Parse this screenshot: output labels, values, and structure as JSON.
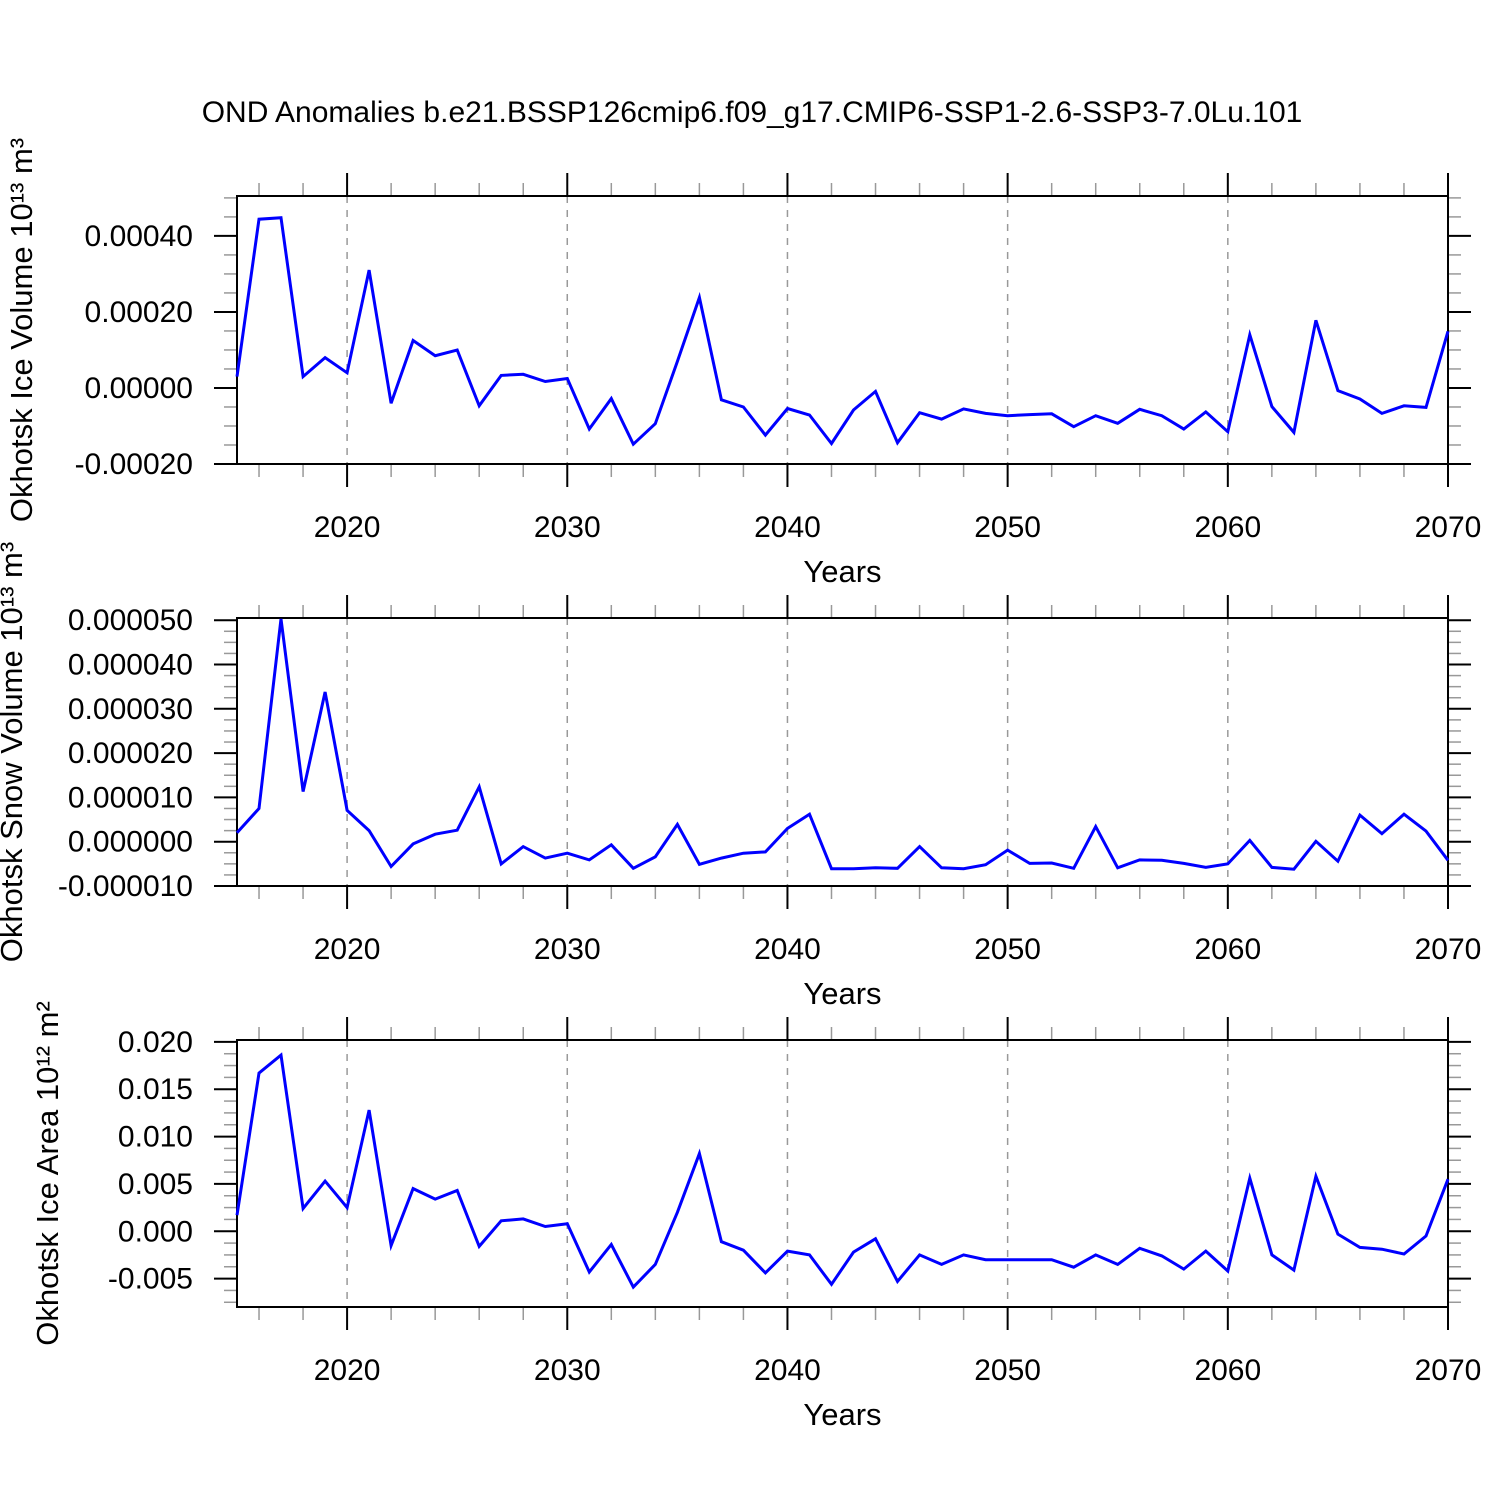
{
  "title": "OND Anomalies b.e21.BSSP126cmip6.f09_g17.CMIP6-SSP1-2.6-SSP3-7.0Lu.101",
  "colors": {
    "line": "#0000ff",
    "axis": "#000000",
    "minor_tick": "#999999",
    "grid": "#999999",
    "background": "#ffffff"
  },
  "chart_data": [
    {
      "type": "line",
      "name": "okhotsk-ice-volume",
      "ylabel": "Okhotsk Ice Volume 10¹³ m³",
      "xlabel": "Years",
      "line_color": "#0000ff",
      "xlim": [
        2015,
        2070
      ],
      "ylim": [
        -0.0002,
        0.000505
      ],
      "x_major_ticks": [
        2020,
        2030,
        2040,
        2050,
        2060,
        2070
      ],
      "x_tick_labels": [
        "2020",
        "2030",
        "2040",
        "2050",
        "2060",
        "2070"
      ],
      "x_minor_step": 2,
      "y_major_ticks": [
        -0.0002,
        0.0,
        0.0002,
        0.0004
      ],
      "y_tick_labels": [
        "-0.00020",
        "0.00000",
        "0.00020",
        "0.00040"
      ],
      "y_minor_step": 5e-05,
      "grid_x": [
        2020,
        2030,
        2040,
        2050,
        2060
      ],
      "x": [
        2015,
        2016,
        2017,
        2018,
        2019,
        2020,
        2021,
        2022,
        2023,
        2024,
        2025,
        2026,
        2027,
        2028,
        2029,
        2030,
        2031,
        2032,
        2033,
        2034,
        2035,
        2036,
        2037,
        2038,
        2039,
        2040,
        2041,
        2042,
        2043,
        2044,
        2045,
        2046,
        2047,
        2048,
        2049,
        2050,
        2051,
        2052,
        2053,
        2054,
        2055,
        2056,
        2057,
        2058,
        2059,
        2060,
        2061,
        2062,
        2063,
        2064,
        2065,
        2066,
        2067,
        2068,
        2069,
        2070
      ],
      "values": [
        3e-05,
        0.000444,
        0.000448,
        3e-05,
        8e-05,
        4e-05,
        0.00031,
        -4e-05,
        0.000125,
        8.5e-05,
        0.0001,
        -4.7e-05,
        3.3e-05,
        3.6e-05,
        1.7e-05,
        2.5e-05,
        -0.000108,
        -2.8e-05,
        -0.000148,
        -9.4e-05,
        7e-05,
        0.000238,
        -3.1e-05,
        -5e-05,
        -0.000124,
        -5.4e-05,
        -7.1e-05,
        -0.000146,
        -5.8e-05,
        -9e-06,
        -0.000144,
        -6.5e-05,
        -8.2e-05,
        -5.5e-05,
        -6.7e-05,
        -7.3e-05,
        -7e-05,
        -6.8e-05,
        -0.000102,
        -7.3e-05,
        -9.3e-05,
        -5.6e-05,
        -7.3e-05,
        -0.000108,
        -6.3e-05,
        -0.000115,
        0.00014,
        -4.9e-05,
        -0.000117,
        0.000178,
        -7e-06,
        -2.9e-05,
        -6.7e-05,
        -4.7e-05,
        -5.1e-05,
        0.000149
      ]
    },
    {
      "type": "line",
      "name": "okhotsk-snow-volume",
      "ylabel": "Okhotsk Snow Volume 10¹³ m³",
      "xlabel": "Years",
      "line_color": "#0000ff",
      "xlim": [
        2015,
        2070
      ],
      "ylim": [
        -1e-05,
        5.05e-05
      ],
      "x_major_ticks": [
        2020,
        2030,
        2040,
        2050,
        2060,
        2070
      ],
      "x_tick_labels": [
        "2020",
        "2030",
        "2040",
        "2050",
        "2060",
        "2070"
      ],
      "x_minor_step": 2,
      "y_major_ticks": [
        -1e-05,
        0.0,
        1e-05,
        2e-05,
        3e-05,
        4e-05,
        5e-05
      ],
      "y_tick_labels": [
        "-0.000010",
        "0.000000",
        "0.000010",
        "0.000020",
        "0.000030",
        "0.000040",
        "0.000050"
      ],
      "y_minor_step": 2.5e-06,
      "grid_x": [
        2020,
        2030,
        2040,
        2050,
        2060
      ],
      "x": [
        2015,
        2016,
        2017,
        2018,
        2019,
        2020,
        2021,
        2022,
        2023,
        2024,
        2025,
        2026,
        2027,
        2028,
        2029,
        2030,
        2031,
        2032,
        2033,
        2034,
        2035,
        2036,
        2037,
        2038,
        2039,
        2040,
        2041,
        2042,
        2043,
        2044,
        2045,
        2046,
        2047,
        2048,
        2049,
        2050,
        2051,
        2052,
        2053,
        2054,
        2055,
        2056,
        2057,
        2058,
        2059,
        2060,
        2061,
        2062,
        2063,
        2064,
        2065,
        2066,
        2067,
        2068,
        2069,
        2070
      ],
      "values": [
        2e-06,
        7.5e-06,
        5.03e-05,
        1.13e-05,
        3.38e-05,
        7.1e-06,
        2.5e-06,
        -5.6e-06,
        -5e-07,
        1.7e-06,
        2.6e-06,
        1.24e-05,
        -5e-06,
        -1.1e-06,
        -3.7e-06,
        -2.6e-06,
        -4.1e-06,
        -7e-07,
        -6e-06,
        -3.4e-06,
        3.9e-06,
        -5.1e-06,
        -3.7e-06,
        -2.6e-06,
        -2.3e-06,
        3e-06,
        6.2e-06,
        -6.1e-06,
        -6.1e-06,
        -5.9e-06,
        -6e-06,
        -1.1e-06,
        -5.9e-06,
        -6.1e-06,
        -5.2e-06,
        -1.9e-06,
        -4.9e-06,
        -4.8e-06,
        -6e-06,
        3.4e-06,
        -5.9e-06,
        -4.1e-06,
        -4.2e-06,
        -4.9e-06,
        -5.8e-06,
        -5e-06,
        3e-07,
        -5.8e-06,
        -6.2e-06,
        1e-07,
        -4.4e-06,
        6e-06,
        1.8e-06,
        6.2e-06,
        2.4e-06,
        -4.2e-06
      ]
    },
    {
      "type": "line",
      "name": "okhotsk-ice-area",
      "ylabel": "Okhotsk Ice Area 10¹² m²",
      "xlabel": "Years",
      "line_color": "#0000ff",
      "xlim": [
        2015,
        2070
      ],
      "ylim": [
        -0.008,
        0.0202
      ],
      "x_major_ticks": [
        2020,
        2030,
        2040,
        2050,
        2060,
        2070
      ],
      "x_tick_labels": [
        "2020",
        "2030",
        "2040",
        "2050",
        "2060",
        "2070"
      ],
      "x_minor_step": 2,
      "y_major_ticks": [
        -0.005,
        0.0,
        0.005,
        0.01,
        0.015,
        0.02
      ],
      "y_tick_labels": [
        "-0.005",
        "0.000",
        "0.005",
        "0.010",
        "0.015",
        "0.020"
      ],
      "y_minor_step": 0.00125,
      "grid_x": [
        2020,
        2030,
        2040,
        2050,
        2060
      ],
      "x": [
        2015,
        2016,
        2017,
        2018,
        2019,
        2020,
        2021,
        2022,
        2023,
        2024,
        2025,
        2026,
        2027,
        2028,
        2029,
        2030,
        2031,
        2032,
        2033,
        2034,
        2035,
        2036,
        2037,
        2038,
        2039,
        2040,
        2041,
        2042,
        2043,
        2044,
        2045,
        2046,
        2047,
        2048,
        2049,
        2050,
        2051,
        2052,
        2053,
        2054,
        2055,
        2056,
        2057,
        2058,
        2059,
        2060,
        2061,
        2062,
        2063,
        2064,
        2065,
        2066,
        2067,
        2068,
        2069,
        2070
      ],
      "values": [
        0.0017,
        0.0167,
        0.0186,
        0.0024,
        0.0053,
        0.0025,
        0.0128,
        -0.0015,
        0.0045,
        0.0034,
        0.0043,
        -0.0016,
        0.0011,
        0.0013,
        0.0005,
        0.0008,
        -0.0043,
        -0.0014,
        -0.0059,
        -0.0035,
        0.002,
        0.0082,
        -0.0011,
        -0.002,
        -0.0044,
        -0.0021,
        -0.0025,
        -0.0056,
        -0.0022,
        -0.0008,
        -0.0053,
        -0.0025,
        -0.0035,
        -0.0025,
        -0.003,
        -0.003,
        -0.003,
        -0.003,
        -0.0038,
        -0.0025,
        -0.0035,
        -0.0018,
        -0.0026,
        -0.004,
        -0.0021,
        -0.0042,
        0.0056,
        -0.0025,
        -0.0041,
        0.0058,
        -0.0003,
        -0.0017,
        -0.0019,
        -0.0024,
        -0.0005,
        0.0055
      ]
    }
  ]
}
